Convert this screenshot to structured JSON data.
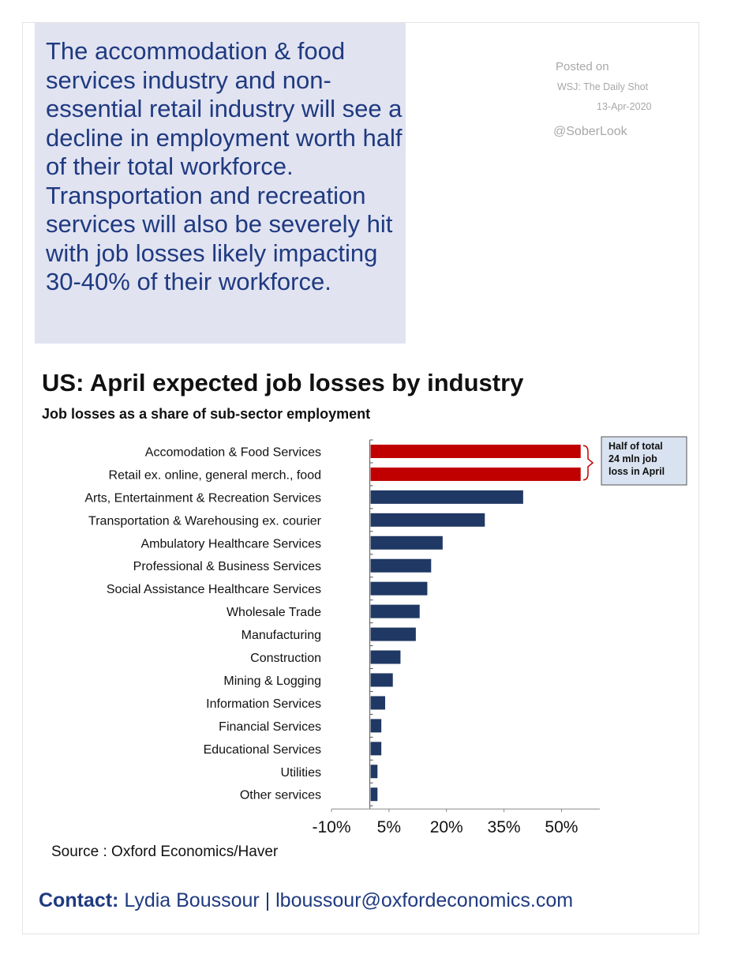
{
  "summary": {
    "text": "The accommodation & food services industry and non-essential retail industry will see a decline in employment worth half of their total workforce. Transportation and recreation services will also be severely hit with job losses likely impacting 30-40% of their workforce."
  },
  "posted": {
    "label": "Posted on",
    "source": "WSJ: The Daily Shot",
    "date": "13-Apr-2020",
    "handle": "@SoberLook"
  },
  "chart_data": {
    "type": "bar",
    "orientation": "horizontal",
    "title": "US: April expected job losses by industry",
    "subtitle": "Job losses as a share of sub-sector employment",
    "categories": [
      "Accomodation & Food Services",
      "Retail ex. online, general merch., food",
      "Arts, Entertainment & Recreation Services",
      "Transportation & Warehousing ex. courier",
      "Ambulatory Healthcare Services",
      "Professional & Business Services",
      "Social Assistance Healthcare Services",
      "Wholesale Trade",
      "Manufacturing",
      "Construction",
      "Mining & Logging",
      "Information Services",
      "Financial Services",
      "Educational Services",
      "Utilities",
      "Other services"
    ],
    "values": [
      55,
      55,
      40,
      30,
      19,
      16,
      15,
      13,
      12,
      8,
      6,
      4,
      3,
      3,
      2,
      2
    ],
    "bar_colors": [
      "#c00000",
      "#c00000",
      "#203864",
      "#203864",
      "#203864",
      "#203864",
      "#203864",
      "#203864",
      "#203864",
      "#203864",
      "#203864",
      "#203864",
      "#203864",
      "#203864",
      "#203864",
      "#203864"
    ],
    "x_ticks": [
      "-10%",
      "5%",
      "20%",
      "35%",
      "50%"
    ],
    "xlim": [
      -10,
      60
    ],
    "annotation": "Half of total 24 mln job loss in April",
    "source": "Source : Oxford Economics/Haver"
  },
  "contact": {
    "label": "Contact:",
    "name": "Lydia Boussour | lboussour@oxfordeconomics.com"
  }
}
